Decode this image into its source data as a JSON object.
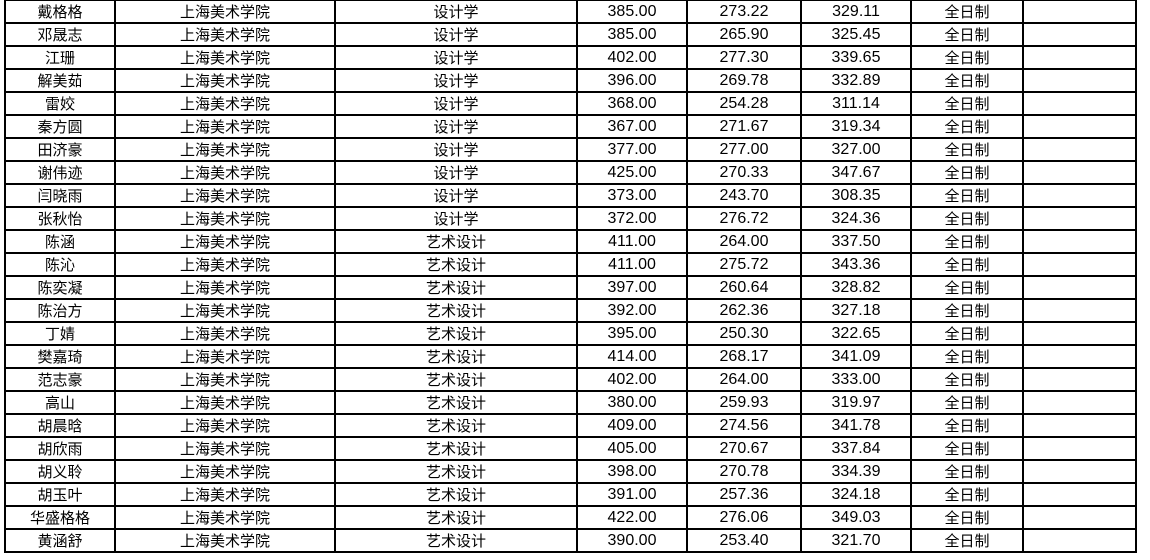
{
  "rows": [
    {
      "name": "戴格格",
      "school": "上海美术学院",
      "major": "设计学",
      "score1": "385.00",
      "score2": "273.22",
      "score3": "329.11",
      "mode": "全日制",
      "note": ""
    },
    {
      "name": "邓晟志",
      "school": "上海美术学院",
      "major": "设计学",
      "score1": "385.00",
      "score2": "265.90",
      "score3": "325.45",
      "mode": "全日制",
      "note": ""
    },
    {
      "name": "江珊",
      "school": "上海美术学院",
      "major": "设计学",
      "score1": "402.00",
      "score2": "277.30",
      "score3": "339.65",
      "mode": "全日制",
      "note": ""
    },
    {
      "name": "解美茹",
      "school": "上海美术学院",
      "major": "设计学",
      "score1": "396.00",
      "score2": "269.78",
      "score3": "332.89",
      "mode": "全日制",
      "note": ""
    },
    {
      "name": "雷姣",
      "school": "上海美术学院",
      "major": "设计学",
      "score1": "368.00",
      "score2": "254.28",
      "score3": "311.14",
      "mode": "全日制",
      "note": ""
    },
    {
      "name": "秦方圆",
      "school": "上海美术学院",
      "major": "设计学",
      "score1": "367.00",
      "score2": "271.67",
      "score3": "319.34",
      "mode": "全日制",
      "note": ""
    },
    {
      "name": "田济豪",
      "school": "上海美术学院",
      "major": "设计学",
      "score1": "377.00",
      "score2": "277.00",
      "score3": "327.00",
      "mode": "全日制",
      "note": ""
    },
    {
      "name": "谢伟迹",
      "school": "上海美术学院",
      "major": "设计学",
      "score1": "425.00",
      "score2": "270.33",
      "score3": "347.67",
      "mode": "全日制",
      "note": ""
    },
    {
      "name": "闫晓雨",
      "school": "上海美术学院",
      "major": "设计学",
      "score1": "373.00",
      "score2": "243.70",
      "score3": "308.35",
      "mode": "全日制",
      "note": ""
    },
    {
      "name": "张秋怡",
      "school": "上海美术学院",
      "major": "设计学",
      "score1": "372.00",
      "score2": "276.72",
      "score3": "324.36",
      "mode": "全日制",
      "note": ""
    },
    {
      "name": "陈涵",
      "school": "上海美术学院",
      "major": "艺术设计",
      "score1": "411.00",
      "score2": "264.00",
      "score3": "337.50",
      "mode": "全日制",
      "note": ""
    },
    {
      "name": "陈沁",
      "school": "上海美术学院",
      "major": "艺术设计",
      "score1": "411.00",
      "score2": "275.72",
      "score3": "343.36",
      "mode": "全日制",
      "note": ""
    },
    {
      "name": "陈奕凝",
      "school": "上海美术学院",
      "major": "艺术设计",
      "score1": "397.00",
      "score2": "260.64",
      "score3": "328.82",
      "mode": "全日制",
      "note": ""
    },
    {
      "name": "陈治方",
      "school": "上海美术学院",
      "major": "艺术设计",
      "score1": "392.00",
      "score2": "262.36",
      "score3": "327.18",
      "mode": "全日制",
      "note": ""
    },
    {
      "name": "丁婧",
      "school": "上海美术学院",
      "major": "艺术设计",
      "score1": "395.00",
      "score2": "250.30",
      "score3": "322.65",
      "mode": "全日制",
      "note": ""
    },
    {
      "name": "樊嘉琦",
      "school": "上海美术学院",
      "major": "艺术设计",
      "score1": "414.00",
      "score2": "268.17",
      "score3": "341.09",
      "mode": "全日制",
      "note": ""
    },
    {
      "name": "范志豪",
      "school": "上海美术学院",
      "major": "艺术设计",
      "score1": "402.00",
      "score2": "264.00",
      "score3": "333.00",
      "mode": "全日制",
      "note": ""
    },
    {
      "name": "高山",
      "school": "上海美术学院",
      "major": "艺术设计",
      "score1": "380.00",
      "score2": "259.93",
      "score3": "319.97",
      "mode": "全日制",
      "note": ""
    },
    {
      "name": "胡晨晗",
      "school": "上海美术学院",
      "major": "艺术设计",
      "score1": "409.00",
      "score2": "274.56",
      "score3": "341.78",
      "mode": "全日制",
      "note": ""
    },
    {
      "name": "胡欣雨",
      "school": "上海美术学院",
      "major": "艺术设计",
      "score1": "405.00",
      "score2": "270.67",
      "score3": "337.84",
      "mode": "全日制",
      "note": ""
    },
    {
      "name": "胡义聆",
      "school": "上海美术学院",
      "major": "艺术设计",
      "score1": "398.00",
      "score2": "270.78",
      "score3": "334.39",
      "mode": "全日制",
      "note": ""
    },
    {
      "name": "胡玉叶",
      "school": "上海美术学院",
      "major": "艺术设计",
      "score1": "391.00",
      "score2": "257.36",
      "score3": "324.18",
      "mode": "全日制",
      "note": ""
    },
    {
      "name": "华盛格格",
      "school": "上海美术学院",
      "major": "艺术设计",
      "score1": "422.00",
      "score2": "276.06",
      "score3": "349.03",
      "mode": "全日制",
      "note": ""
    },
    {
      "name": "黄涵舒",
      "school": "上海美术学院",
      "major": "艺术设计",
      "score1": "390.00",
      "score2": "253.40",
      "score3": "321.70",
      "mode": "全日制",
      "note": ""
    }
  ]
}
